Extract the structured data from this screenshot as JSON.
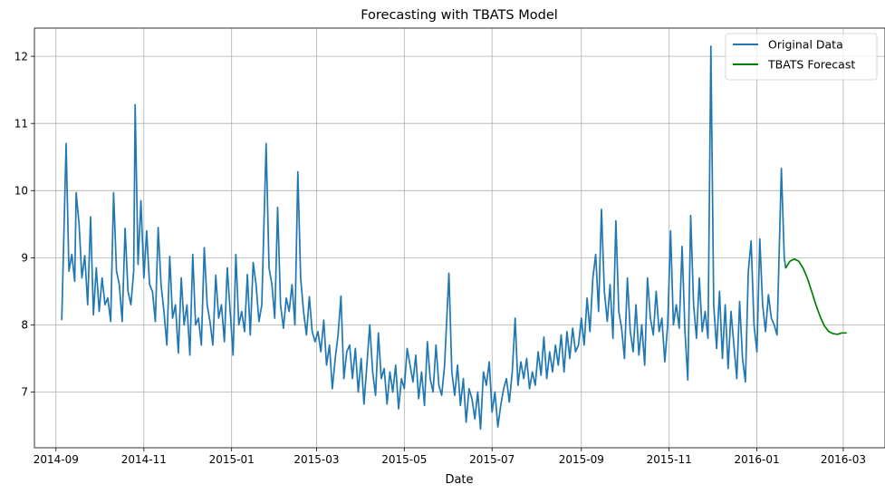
{
  "chart_data": {
    "type": "line",
    "title": "Forecasting with TBATS Model",
    "xlabel": "Date",
    "ylabel": "",
    "x_range": [
      "2014-08-17",
      "2016-03-30"
    ],
    "ylim": [
      6.17,
      12.42
    ],
    "grid": true,
    "legend_position": "top-right",
    "x_ticks": [
      "2014-09",
      "2014-11",
      "2015-01",
      "2015-03",
      "2015-05",
      "2015-07",
      "2015-09",
      "2015-11",
      "2016-01",
      "2016-03"
    ],
    "y_ticks": [
      7,
      8,
      9,
      10,
      11,
      12
    ],
    "series": [
      {
        "name": "Original Data",
        "color": "#1f77b4",
        "points": [
          [
            "2014-09-05",
            8.08
          ],
          [
            "2014-09-08",
            10.7
          ],
          [
            "2014-09-10",
            8.8
          ],
          [
            "2014-09-12",
            9.05
          ],
          [
            "2014-09-14",
            8.65
          ],
          [
            "2014-09-15",
            9.97
          ],
          [
            "2014-09-17",
            9.5
          ],
          [
            "2014-09-19",
            8.7
          ],
          [
            "2014-09-21",
            9.03
          ],
          [
            "2014-09-23",
            8.3
          ],
          [
            "2014-09-25",
            9.61
          ],
          [
            "2014-09-27",
            8.15
          ],
          [
            "2014-09-29",
            8.85
          ],
          [
            "2014-10-01",
            8.2
          ],
          [
            "2014-10-03",
            8.7
          ],
          [
            "2014-10-05",
            8.3
          ],
          [
            "2014-10-07",
            8.4
          ],
          [
            "2014-10-09",
            8.05
          ],
          [
            "2014-10-11",
            9.97
          ],
          [
            "2014-10-13",
            8.8
          ],
          [
            "2014-10-15",
            8.6
          ],
          [
            "2014-10-17",
            8.05
          ],
          [
            "2014-10-19",
            9.44
          ],
          [
            "2014-10-21",
            8.5
          ],
          [
            "2014-10-23",
            8.3
          ],
          [
            "2014-10-25",
            8.8
          ],
          [
            "2014-10-26",
            11.28
          ],
          [
            "2014-10-28",
            8.9
          ],
          [
            "2014-10-30",
            9.85
          ],
          [
            "2014-11-01",
            8.7
          ],
          [
            "2014-11-03",
            9.4
          ],
          [
            "2014-11-05",
            8.6
          ],
          [
            "2014-11-07",
            8.5
          ],
          [
            "2014-11-09",
            8.05
          ],
          [
            "2014-11-11",
            9.45
          ],
          [
            "2014-11-13",
            8.6
          ],
          [
            "2014-11-15",
            8.2
          ],
          [
            "2014-11-17",
            7.7
          ],
          [
            "2014-11-19",
            9.02
          ],
          [
            "2014-11-21",
            8.1
          ],
          [
            "2014-11-23",
            8.3
          ],
          [
            "2014-11-25",
            7.58
          ],
          [
            "2014-11-27",
            8.7
          ],
          [
            "2014-11-29",
            8.0
          ],
          [
            "2014-12-01",
            8.3
          ],
          [
            "2014-12-03",
            7.55
          ],
          [
            "2014-12-05",
            9.05
          ],
          [
            "2014-12-07",
            8.0
          ],
          [
            "2014-12-09",
            8.1
          ],
          [
            "2014-12-11",
            7.7
          ],
          [
            "2014-12-13",
            9.15
          ],
          [
            "2014-12-15",
            8.3
          ],
          [
            "2014-12-17",
            8.05
          ],
          [
            "2014-12-19",
            7.7
          ],
          [
            "2014-12-21",
            8.74
          ],
          [
            "2014-12-23",
            8.1
          ],
          [
            "2014-12-25",
            8.3
          ],
          [
            "2014-12-27",
            7.75
          ],
          [
            "2014-12-29",
            8.85
          ],
          [
            "2014-12-31",
            8.2
          ],
          [
            "2015-01-02",
            7.55
          ],
          [
            "2015-01-04",
            9.05
          ],
          [
            "2015-01-06",
            8.0
          ],
          [
            "2015-01-08",
            8.2
          ],
          [
            "2015-01-10",
            7.9
          ],
          [
            "2015-01-12",
            8.75
          ],
          [
            "2015-01-14",
            7.85
          ],
          [
            "2015-01-16",
            8.93
          ],
          [
            "2015-01-18",
            8.6
          ],
          [
            "2015-01-20",
            8.05
          ],
          [
            "2015-01-22",
            8.3
          ],
          [
            "2015-01-25",
            10.7
          ],
          [
            "2015-01-27",
            8.85
          ],
          [
            "2015-01-29",
            8.6
          ],
          [
            "2015-01-31",
            8.1
          ],
          [
            "2015-02-02",
            9.75
          ],
          [
            "2015-02-04",
            8.3
          ],
          [
            "2015-02-06",
            7.95
          ],
          [
            "2015-02-08",
            8.4
          ],
          [
            "2015-02-10",
            8.2
          ],
          [
            "2015-02-12",
            8.6
          ],
          [
            "2015-02-14",
            8.0
          ],
          [
            "2015-02-16",
            10.28
          ],
          [
            "2015-02-18",
            8.7
          ],
          [
            "2015-02-20",
            8.2
          ],
          [
            "2015-02-22",
            7.85
          ],
          [
            "2015-02-24",
            8.42
          ],
          [
            "2015-02-26",
            7.9
          ],
          [
            "2015-02-28",
            7.75
          ],
          [
            "2015-03-02",
            7.9
          ],
          [
            "2015-03-04",
            7.6
          ],
          [
            "2015-03-06",
            8.07
          ],
          [
            "2015-03-08",
            7.4
          ],
          [
            "2015-03-10",
            7.7
          ],
          [
            "2015-03-12",
            7.05
          ],
          [
            "2015-03-14",
            7.5
          ],
          [
            "2015-03-16",
            7.85
          ],
          [
            "2015-03-18",
            8.43
          ],
          [
            "2015-03-20",
            7.2
          ],
          [
            "2015-03-22",
            7.6
          ],
          [
            "2015-03-24",
            7.7
          ],
          [
            "2015-03-26",
            7.2
          ],
          [
            "2015-03-28",
            7.65
          ],
          [
            "2015-03-30",
            7.0
          ],
          [
            "2015-04-01",
            7.5
          ],
          [
            "2015-04-03",
            6.82
          ],
          [
            "2015-04-05",
            7.4
          ],
          [
            "2015-04-07",
            8.0
          ],
          [
            "2015-04-09",
            7.3
          ],
          [
            "2015-04-11",
            6.95
          ],
          [
            "2015-04-13",
            7.88
          ],
          [
            "2015-04-15",
            7.2
          ],
          [
            "2015-04-17",
            7.35
          ],
          [
            "2015-04-19",
            6.82
          ],
          [
            "2015-04-21",
            7.3
          ],
          [
            "2015-04-23",
            7.0
          ],
          [
            "2015-04-25",
            7.4
          ],
          [
            "2015-04-27",
            6.75
          ],
          [
            "2015-04-29",
            7.2
          ],
          [
            "2015-05-01",
            7.05
          ],
          [
            "2015-05-03",
            7.65
          ],
          [
            "2015-05-05",
            7.4
          ],
          [
            "2015-05-07",
            7.15
          ],
          [
            "2015-05-09",
            7.55
          ],
          [
            "2015-05-11",
            6.9
          ],
          [
            "2015-05-13",
            7.3
          ],
          [
            "2015-05-15",
            6.8
          ],
          [
            "2015-05-17",
            7.75
          ],
          [
            "2015-05-19",
            7.2
          ],
          [
            "2015-05-21",
            7.0
          ],
          [
            "2015-05-23",
            7.7
          ],
          [
            "2015-05-25",
            7.1
          ],
          [
            "2015-05-27",
            6.95
          ],
          [
            "2015-05-29",
            7.4
          ],
          [
            "2015-06-01",
            8.77
          ],
          [
            "2015-06-03",
            7.3
          ],
          [
            "2015-06-05",
            6.95
          ],
          [
            "2015-06-07",
            7.4
          ],
          [
            "2015-06-09",
            6.8
          ],
          [
            "2015-06-11",
            7.2
          ],
          [
            "2015-06-13",
            6.55
          ],
          [
            "2015-06-15",
            7.05
          ],
          [
            "2015-06-17",
            6.9
          ],
          [
            "2015-06-19",
            6.6
          ],
          [
            "2015-06-21",
            7.0
          ],
          [
            "2015-06-23",
            6.45
          ],
          [
            "2015-06-25",
            7.3
          ],
          [
            "2015-06-27",
            7.1
          ],
          [
            "2015-06-29",
            7.45
          ],
          [
            "2015-07-01",
            6.7
          ],
          [
            "2015-07-03",
            7.0
          ],
          [
            "2015-07-05",
            6.48
          ],
          [
            "2015-07-07",
            6.8
          ],
          [
            "2015-07-09",
            7.05
          ],
          [
            "2015-07-11",
            7.2
          ],
          [
            "2015-07-13",
            6.85
          ],
          [
            "2015-07-15",
            7.3
          ],
          [
            "2015-07-17",
            8.1
          ],
          [
            "2015-07-19",
            7.1
          ],
          [
            "2015-07-21",
            7.45
          ],
          [
            "2015-07-23",
            7.2
          ],
          [
            "2015-07-25",
            7.5
          ],
          [
            "2015-07-27",
            7.05
          ],
          [
            "2015-07-29",
            7.3
          ],
          [
            "2015-07-31",
            7.1
          ],
          [
            "2015-08-02",
            7.6
          ],
          [
            "2015-08-04",
            7.25
          ],
          [
            "2015-08-06",
            7.82
          ],
          [
            "2015-08-08",
            7.2
          ],
          [
            "2015-08-10",
            7.6
          ],
          [
            "2015-08-12",
            7.3
          ],
          [
            "2015-08-14",
            7.7
          ],
          [
            "2015-08-16",
            7.4
          ],
          [
            "2015-08-18",
            7.85
          ],
          [
            "2015-08-20",
            7.3
          ],
          [
            "2015-08-22",
            7.9
          ],
          [
            "2015-08-24",
            7.5
          ],
          [
            "2015-08-26",
            7.95
          ],
          [
            "2015-08-28",
            7.6
          ],
          [
            "2015-08-30",
            7.7
          ],
          [
            "2015-09-01",
            8.1
          ],
          [
            "2015-09-03",
            7.7
          ],
          [
            "2015-09-05",
            8.4
          ],
          [
            "2015-09-07",
            7.9
          ],
          [
            "2015-09-09",
            8.7
          ],
          [
            "2015-09-11",
            9.05
          ],
          [
            "2015-09-13",
            8.2
          ],
          [
            "2015-09-15",
            9.72
          ],
          [
            "2015-09-17",
            8.5
          ],
          [
            "2015-09-19",
            8.05
          ],
          [
            "2015-09-21",
            8.6
          ],
          [
            "2015-09-23",
            7.8
          ],
          [
            "2015-09-25",
            9.55
          ],
          [
            "2015-09-27",
            8.2
          ],
          [
            "2015-09-29",
            7.95
          ],
          [
            "2015-10-01",
            7.5
          ],
          [
            "2015-10-03",
            8.7
          ],
          [
            "2015-10-05",
            7.9
          ],
          [
            "2015-10-07",
            7.6
          ],
          [
            "2015-10-09",
            8.3
          ],
          [
            "2015-10-11",
            7.55
          ],
          [
            "2015-10-13",
            8.0
          ],
          [
            "2015-10-15",
            7.4
          ],
          [
            "2015-10-17",
            8.7
          ],
          [
            "2015-10-19",
            8.1
          ],
          [
            "2015-10-21",
            7.85
          ],
          [
            "2015-10-23",
            8.5
          ],
          [
            "2015-10-25",
            7.9
          ],
          [
            "2015-10-27",
            8.1
          ],
          [
            "2015-10-29",
            7.45
          ],
          [
            "2015-10-31",
            8.0
          ],
          [
            "2015-11-02",
            9.4
          ],
          [
            "2015-11-04",
            8.0
          ],
          [
            "2015-11-06",
            8.3
          ],
          [
            "2015-11-08",
            7.95
          ],
          [
            "2015-11-10",
            9.17
          ],
          [
            "2015-11-12",
            7.9
          ],
          [
            "2015-11-14",
            7.18
          ],
          [
            "2015-11-16",
            9.63
          ],
          [
            "2015-11-18",
            8.3
          ],
          [
            "2015-11-20",
            7.8
          ],
          [
            "2015-11-22",
            8.7
          ],
          [
            "2015-11-24",
            7.9
          ],
          [
            "2015-11-26",
            8.2
          ],
          [
            "2015-11-28",
            7.8
          ],
          [
            "2015-11-30",
            12.15
          ],
          [
            "2015-12-02",
            8.3
          ],
          [
            "2015-12-04",
            7.65
          ],
          [
            "2015-12-06",
            8.5
          ],
          [
            "2015-12-08",
            7.5
          ],
          [
            "2015-12-10",
            8.3
          ],
          [
            "2015-12-12",
            7.35
          ],
          [
            "2015-12-14",
            8.2
          ],
          [
            "2015-12-16",
            7.7
          ],
          [
            "2015-12-18",
            7.2
          ],
          [
            "2015-12-20",
            8.35
          ],
          [
            "2015-12-22",
            7.5
          ],
          [
            "2015-12-24",
            7.15
          ],
          [
            "2015-12-26",
            8.8
          ],
          [
            "2015-12-28",
            9.25
          ],
          [
            "2015-12-30",
            8.0
          ],
          [
            "2016-01-01",
            7.6
          ],
          [
            "2016-01-03",
            9.28
          ],
          [
            "2016-01-05",
            8.3
          ],
          [
            "2016-01-07",
            7.9
          ],
          [
            "2016-01-09",
            8.45
          ],
          [
            "2016-01-11",
            8.1
          ],
          [
            "2016-01-13",
            8.0
          ],
          [
            "2016-01-15",
            7.85
          ],
          [
            "2016-01-18",
            10.33
          ],
          [
            "2016-01-20",
            9.0
          ],
          [
            "2016-01-21",
            8.85
          ]
        ]
      },
      {
        "name": "TBATS Forecast",
        "color": "#008000",
        "points": [
          [
            "2016-01-21",
            8.85
          ],
          [
            "2016-01-24",
            8.95
          ],
          [
            "2016-01-27",
            8.98
          ],
          [
            "2016-01-30",
            8.95
          ],
          [
            "2016-02-02",
            8.85
          ],
          [
            "2016-02-05",
            8.7
          ],
          [
            "2016-02-08",
            8.5
          ],
          [
            "2016-02-11",
            8.3
          ],
          [
            "2016-02-14",
            8.12
          ],
          [
            "2016-02-17",
            7.98
          ],
          [
            "2016-02-20",
            7.9
          ],
          [
            "2016-02-23",
            7.87
          ],
          [
            "2016-02-26",
            7.86
          ],
          [
            "2016-02-29",
            7.88
          ],
          [
            "2016-03-03",
            7.88
          ]
        ]
      }
    ]
  }
}
